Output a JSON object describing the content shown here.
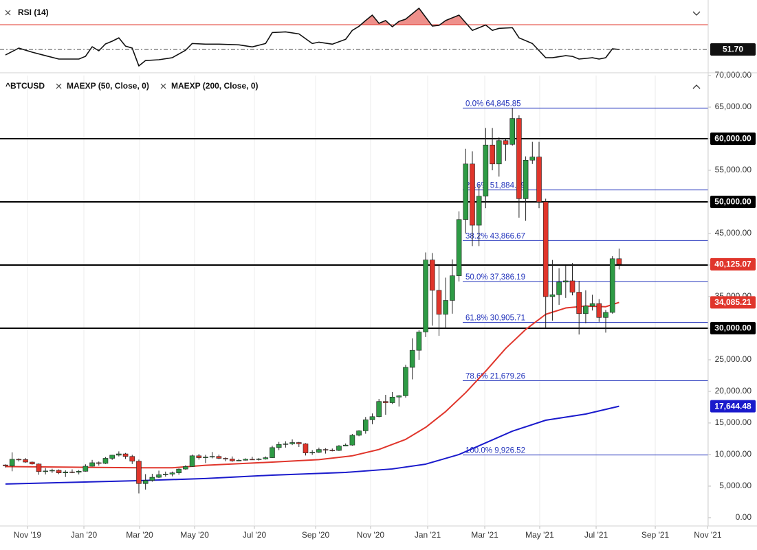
{
  "chart_data": [
    {
      "type": "line",
      "title": "RSI (14)",
      "color": "#111111",
      "x": [
        0,
        2,
        4,
        6,
        8,
        11,
        12,
        13,
        14,
        15,
        16,
        17,
        18,
        19,
        20,
        21,
        23,
        25,
        27,
        28,
        30,
        32,
        35,
        37,
        39,
        40,
        42,
        44,
        46,
        47,
        49,
        51,
        52,
        53,
        54,
        55,
        56,
        57,
        58,
        59,
        60,
        62,
        64,
        65,
        66,
        68,
        70,
        71,
        72,
        73,
        74,
        76,
        77,
        79,
        81,
        82,
        84,
        85,
        86,
        88,
        89,
        90,
        91,
        92
      ],
      "values": [
        47.6,
        52.7,
        49.7,
        47.1,
        44.6,
        44.6,
        46.6,
        53.7,
        50.7,
        55.8,
        57.8,
        60.3,
        54.2,
        52.7,
        39.5,
        43.5,
        44.1,
        45.6,
        51.1,
        56.1,
        55.6,
        55.6,
        55.1,
        53.6,
        56.1,
        64.2,
        64.7,
        63.2,
        56.1,
        57.1,
        55.6,
        59.2,
        65.8,
        68.8,
        73.1,
        77.1,
        71.0,
        73.1,
        68.5,
        72.5,
        74.1,
        82.2,
        69.0,
        69.5,
        73.1,
        77.1,
        65.8,
        67.8,
        69.8,
        65.8,
        67.3,
        67.8,
        60.3,
        56.1,
        45.6,
        45.6,
        47.1,
        46.6,
        44.6,
        45.6,
        44.6,
        45.6,
        52.2,
        51.7
      ],
      "last_label": "51.70",
      "overbought": 70,
      "overbought_color": "#e0352b",
      "xlim": [
        -0.82,
        105.36
      ],
      "ylim": [
        38,
        86
      ]
    },
    {
      "type": "candlestick",
      "name": "^BTCUSD",
      "up_color": "#2e9b45",
      "down_color": "#e0352b",
      "x": [
        0,
        1,
        2,
        3,
        4,
        5,
        6,
        7,
        8,
        9,
        10,
        11,
        12,
        13,
        14,
        15,
        16,
        17,
        18,
        19,
        20,
        21,
        22,
        23,
        24,
        25,
        26,
        27,
        28,
        29,
        30,
        31,
        32,
        33,
        34,
        35,
        36,
        37,
        38,
        39,
        40,
        41,
        42,
        43,
        44,
        45,
        46,
        47,
        48,
        49,
        50,
        51,
        52,
        53,
        54,
        55,
        56,
        57,
        58,
        59,
        60,
        61,
        62,
        63,
        64,
        65,
        66,
        67,
        68,
        69,
        70,
        71,
        72,
        73,
        74,
        75,
        76,
        77,
        78,
        79,
        80,
        81,
        82,
        83,
        84,
        85,
        86,
        87,
        88,
        89,
        90,
        91,
        92
      ],
      "open": [
        8350,
        8200,
        9250,
        9200,
        8800,
        8500,
        7300,
        7400,
        7500,
        7100,
        7250,
        7200,
        7350,
        8150,
        8700,
        8600,
        9400,
        9900,
        10100,
        9700,
        8950,
        5400,
        5900,
        6400,
        6800,
        6900,
        7100,
        7700,
        8100,
        9800,
        9500,
        9600,
        9700,
        9400,
        9300,
        9000,
        9100,
        9250,
        9200,
        9300,
        9500,
        11100,
        11600,
        11700,
        11900,
        11700,
        10250,
        10350,
        10800,
        10700,
        10650,
        11350,
        11500,
        13050,
        13750,
        15500,
        16000,
        18400,
        18200,
        19100,
        19300,
        23800,
        26500,
        29400,
        40800,
        36000,
        32200,
        34400,
        38300,
        47200,
        56000,
        46300,
        50900,
        59000,
        56000,
        59700,
        59100,
        63200,
        50500,
        56600,
        57100,
        50000,
        35000,
        35300,
        37300,
        37500,
        35700,
        32300,
        33500,
        33900,
        31700,
        32500,
        41000
      ],
      "high": [
        8450,
        10350,
        9400,
        9450,
        8900,
        8600,
        7850,
        7750,
        7650,
        7500,
        7650,
        7550,
        8450,
        9150,
        8900,
        9600,
        9950,
        10500,
        10250,
        9950,
        9200,
        6900,
        6950,
        7450,
        7300,
        7300,
        7800,
        8300,
        10000,
        10100,
        9950,
        10400,
        10000,
        9550,
        9700,
        9300,
        9400,
        9650,
        9450,
        9700,
        11400,
        12000,
        12100,
        12400,
        12000,
        11800,
        10700,
        11100,
        11000,
        10950,
        11500,
        11750,
        13250,
        13850,
        15950,
        16500,
        18800,
        19450,
        19900,
        19400,
        24200,
        28400,
        29700,
        42000,
        41900,
        40000,
        38000,
        40900,
        48500,
        58400,
        58000,
        52700,
        61700,
        61700,
        60200,
        60100,
        64845.85,
        63700,
        57200,
        59500,
        59500,
        50500,
        40800,
        39500,
        39900,
        40300,
        37500,
        36000,
        35300,
        34600,
        32900,
        41400,
        42600
      ],
      "low": [
        7950,
        7350,
        8900,
        8700,
        8400,
        6800,
        6850,
        7100,
        6900,
        6450,
        7050,
        6850,
        7300,
        8100,
        8250,
        8500,
        9150,
        9700,
        9300,
        8500,
        3850,
        4450,
        5700,
        6300,
        6500,
        6550,
        6800,
        7600,
        8050,
        9200,
        8650,
        9400,
        9250,
        8950,
        8850,
        8950,
        9050,
        9150,
        9050,
        9200,
        9450,
        10700,
        11100,
        11500,
        11200,
        9850,
        9950,
        10250,
        10150,
        10500,
        10550,
        11300,
        11400,
        12900,
        13300,
        14800,
        15900,
        16300,
        18000,
        17600,
        19000,
        21900,
        25000,
        28600,
        30400,
        28800,
        29900,
        32300,
        37400,
        45000,
        43000,
        43000,
        49000,
        55000,
        54000,
        56500,
        58900,
        47500,
        47000,
        56000,
        49000,
        30000,
        31200,
        33700,
        34800,
        35200,
        29000,
        30800,
        32800,
        31000,
        29300,
        32300,
        39300
      ],
      "close": [
        8200,
        9250,
        9200,
        8800,
        8500,
        7300,
        7400,
        7500,
        7100,
        7250,
        7200,
        7350,
        8150,
        8700,
        8600,
        9400,
        9900,
        10100,
        9700,
        8950,
        5400,
        5900,
        6400,
        6800,
        6900,
        7100,
        7700,
        8100,
        9800,
        9500,
        9600,
        9700,
        9400,
        9300,
        9000,
        9100,
        9250,
        9200,
        9300,
        9500,
        11100,
        11600,
        11700,
        11900,
        11700,
        10250,
        10350,
        10800,
        10700,
        10650,
        11350,
        11500,
        13050,
        13750,
        15500,
        16000,
        18400,
        18200,
        19100,
        19300,
        23800,
        26500,
        29400,
        40800,
        36000,
        32200,
        34400,
        38300,
        47200,
        56000,
        46300,
        50900,
        59000,
        56000,
        59700,
        59100,
        63200,
        50500,
        56600,
        57100,
        50000,
        35000,
        35300,
        37300,
        37500,
        35700,
        32300,
        33500,
        33900,
        31700,
        32500,
        41000,
        40125.07
      ],
      "last_label": "40,125.07",
      "series": [
        {
          "name": "MAEXP (50, Close, 0)",
          "color": "#e0352b",
          "x": [
            0,
            10,
            20,
            25,
            30,
            40,
            47,
            52,
            56,
            60,
            63,
            66,
            69,
            72,
            75,
            78,
            81,
            84,
            87,
            90,
            92
          ],
          "values": [
            8100,
            8000,
            7900,
            7900,
            8300,
            8800,
            9200,
            9800,
            10800,
            12400,
            14300,
            16800,
            19800,
            23200,
            26800,
            29800,
            32200,
            33200,
            33500,
            33400,
            34085.21
          ],
          "last_label": "34,085.21"
        },
        {
          "name": "MAEXP (200, Close, 0)",
          "color": "#1a1acc",
          "x": [
            0,
            20,
            30,
            40,
            51,
            58,
            63,
            68,
            72,
            76,
            81,
            87,
            92
          ],
          "values": [
            5330,
            5870,
            6200,
            6740,
            7170,
            7720,
            8480,
            10000,
            11850,
            13700,
            15430,
            16410,
            17644.48
          ],
          "last_label": "17,644.48"
        }
      ],
      "levels": [
        {
          "value": 60000,
          "label": "60,000.00"
        },
        {
          "value": 50000,
          "label": "50,000.00"
        },
        40000,
        {
          "value": 30000,
          "label": "30,000.00"
        }
      ],
      "level_color": "#000000",
      "fib_color": "#2233bb",
      "fib": [
        {
          "value": 64845.85,
          "label": "0.0% 64,845.85"
        },
        {
          "value": 51884.89,
          "label": "23.6% 51,884.89"
        },
        {
          "value": 43866.67,
          "label": "38.2% 43,866.67"
        },
        {
          "value": 37386.19,
          "label": "50.0% 37,386.19"
        },
        {
          "value": 30905.71,
          "label": "61.8% 30,905.71"
        },
        {
          "value": 21679.26,
          "label": "78.6% 21,679.26"
        },
        {
          "value": 9926.52,
          "label": "100.0% 9,926.52"
        }
      ],
      "xlim": [
        -0.82,
        105.36
      ],
      "xticks": [
        {
          "value": 3.3,
          "label": "Nov '19"
        },
        {
          "value": 11.76,
          "label": "Jan '20"
        },
        {
          "value": 20.11,
          "label": "Mar '20"
        },
        {
          "value": 28.36,
          "label": "May '20"
        },
        {
          "value": 37.32,
          "label": "Jul '20"
        },
        {
          "value": 46.5,
          "label": "Sep '20"
        },
        {
          "value": 54.74,
          "label": "Nov '20"
        },
        {
          "value": 63.3,
          "label": "Jan '21"
        },
        {
          "value": 71.86,
          "label": "Mar '21"
        },
        {
          "value": 80.1,
          "label": "May '21"
        },
        {
          "value": 88.56,
          "label": "Jul '21"
        },
        {
          "value": 97.43,
          "label": "Sep '21"
        },
        {
          "value": 105.3,
          "label": "Nov '21"
        }
      ],
      "ylim": [
        -1200,
        70000
      ],
      "yticks": [
        {
          "value": 0,
          "label": "0.00"
        },
        {
          "value": 5000,
          "label": "5,000.00"
        },
        {
          "value": 10000,
          "label": "10,000.00"
        },
        {
          "value": 15000,
          "label": "15,000.00"
        },
        {
          "value": 20000,
          "label": "20,000.00"
        },
        {
          "value": 25000,
          "label": "25,000.00"
        },
        {
          "value": 30000,
          "label": "30,000.00"
        },
        {
          "value": 35000,
          "label": "35,000.00"
        },
        {
          "value": 40000,
          "label": "40,000.00"
        },
        {
          "value": 45000,
          "label": "45,000.00"
        },
        {
          "value": 50000,
          "label": "50,000.00"
        },
        {
          "value": 55000,
          "label": "55,000.00"
        },
        {
          "value": 60000,
          "label": "60,000.00"
        },
        {
          "value": 65000,
          "label": "65,000.00"
        },
        {
          "value": 70000,
          "label": "70,000.00"
        }
      ],
      "grid": true
    }
  ]
}
